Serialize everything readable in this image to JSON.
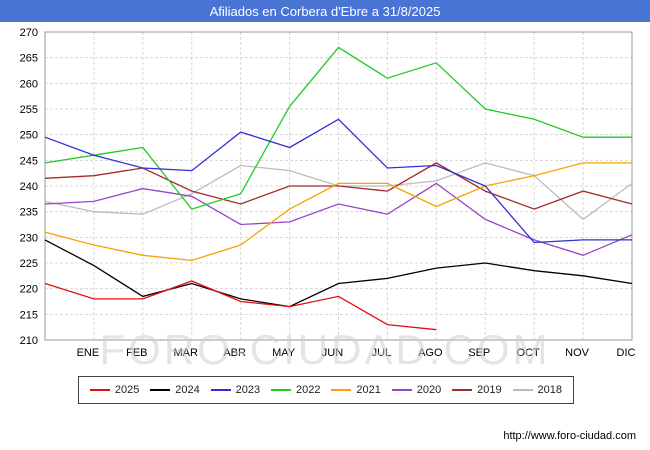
{
  "header": {
    "title": "Afiliados en Corbera d'Ebre a 31/8/2025",
    "bg_color": "#4a74d4"
  },
  "watermark": "FORO-CIUDAD.COM",
  "footer": {
    "url": "http://www.foro-ciudad.com"
  },
  "chart_data": {
    "type": "line",
    "title": "Afiliados en Corbera d'Ebre a 31/8/2025",
    "x_labels": [
      "ENE",
      "FEB",
      "MAR",
      "ABR",
      "MAY",
      "JUN",
      "JUL",
      "AGO",
      "SEP",
      "OCT",
      "NOV",
      "DIC"
    ],
    "ylim": [
      210,
      270
    ],
    "ytick_step": 5,
    "grid": true,
    "legend_position": "bottom",
    "series_note": "values[0] = start-of-year point at the left axis, then one value per month ENE..DIC; null = no data (2025 ends at AGO)",
    "series": [
      {
        "name": "2025",
        "color": "#e01010",
        "values": [
          221,
          218,
          218,
          221.5,
          217.5,
          216.5,
          218.5,
          213,
          212,
          null,
          null,
          null,
          null
        ]
      },
      {
        "name": "2024",
        "color": "#000000",
        "values": [
          229.5,
          224.5,
          218.5,
          221,
          218,
          216.5,
          221,
          222,
          224,
          225,
          223.5,
          222.5,
          221
        ]
      },
      {
        "name": "2023",
        "color": "#2f2fd3",
        "values": [
          249.5,
          246,
          243.5,
          243,
          250.5,
          247.5,
          253,
          243.5,
          244,
          240,
          229,
          229.5,
          229.5
        ]
      },
      {
        "name": "2022",
        "color": "#22cc22",
        "values": [
          244.5,
          246,
          247.5,
          235.5,
          238.5,
          255.5,
          267,
          261,
          264,
          255,
          253,
          249.5,
          249.5
        ]
      },
      {
        "name": "2021",
        "color": "#f5a300",
        "values": [
          231,
          228.5,
          226.5,
          225.5,
          228.5,
          235.5,
          240.5,
          240.5,
          236,
          240,
          242,
          244.5,
          244.5
        ]
      },
      {
        "name": "2020",
        "color": "#9944cc",
        "values": [
          236.5,
          237,
          239.5,
          238,
          232.5,
          233,
          236.5,
          234.5,
          240.5,
          233.5,
          229.5,
          226.5,
          230.5
        ]
      },
      {
        "name": "2019",
        "color": "#a22b2b",
        "values": [
          241.5,
          242,
          243.5,
          239,
          236.5,
          240,
          240,
          239,
          244.5,
          239,
          235.5,
          239,
          236.5
        ]
      },
      {
        "name": "2018",
        "color": "#bbbbbb",
        "values": [
          237,
          235,
          234.5,
          238.5,
          244,
          243,
          240,
          240,
          241,
          244.5,
          242,
          233.5,
          240.5
        ]
      }
    ]
  }
}
